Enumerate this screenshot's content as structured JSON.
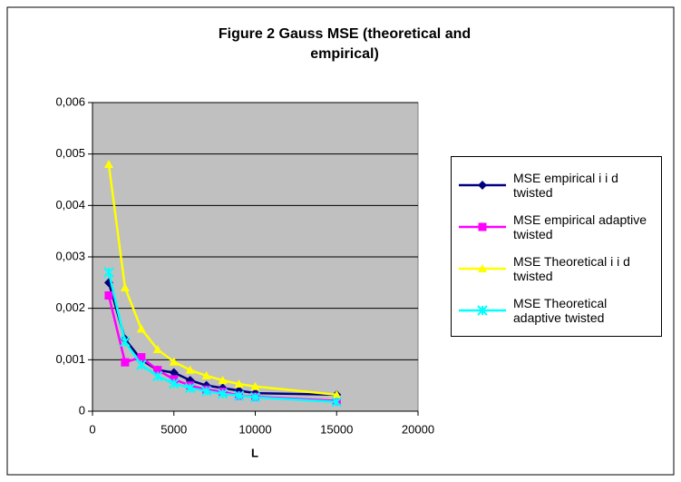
{
  "chart_data": {
    "type": "line",
    "title": [
      "Figure 2 Gauss MSE (theoretical and",
      "empirical)"
    ],
    "x_label": "L",
    "x": [
      1000,
      2000,
      3000,
      4000,
      5000,
      6000,
      7000,
      8000,
      9000,
      10000,
      15000
    ],
    "series": [
      {
        "name": "MSE empirical i i d twisted",
        "color": "#000080",
        "marker": "diamond",
        "values": [
          0.0025,
          0.0014,
          0.001,
          0.0008,
          0.00075,
          0.0006,
          0.0005,
          0.00045,
          0.0004,
          0.00035,
          0.00032
        ]
      },
      {
        "name": "MSE empirical adaptive twisted",
        "color": "#ff00ff",
        "marker": "square",
        "values": [
          0.00225,
          0.00095,
          0.00105,
          0.0008,
          0.00062,
          0.0005,
          0.00042,
          0.00038,
          0.0003,
          0.00028,
          0.0002
        ]
      },
      {
        "name": "MSE Theoretical i i d twisted",
        "color": "#ffff00",
        "marker": "triangle",
        "values": [
          0.0048,
          0.0024,
          0.0016,
          0.0012,
          0.00096,
          0.0008,
          0.00069,
          0.0006,
          0.00053,
          0.00048,
          0.00032
        ]
      },
      {
        "name": "MSE Theoretical adaptive twisted",
        "color": "#00ffff",
        "marker": "x",
        "values": [
          0.0027,
          0.00135,
          0.0009,
          0.00068,
          0.00054,
          0.00045,
          0.00039,
          0.00034,
          0.0003,
          0.00027,
          0.00018
        ]
      }
    ],
    "xlim": [
      0,
      20000
    ],
    "xticks": [
      0,
      5000,
      10000,
      15000,
      20000
    ],
    "ylim": [
      0,
      0.006
    ],
    "yticks": [
      0,
      {
        "value": 0.001,
        "label": "0,001"
      },
      {
        "value": 0.002,
        "label": "0,002"
      },
      {
        "value": 0.003,
        "label": "0,003"
      },
      {
        "value": 0.004,
        "label": "0,004"
      },
      {
        "value": 0.005,
        "label": "0,005"
      },
      {
        "value": 0.006,
        "label": "0,006"
      }
    ],
    "grid": true,
    "legend": "right",
    "plot_background": "#c0c0c0"
  }
}
